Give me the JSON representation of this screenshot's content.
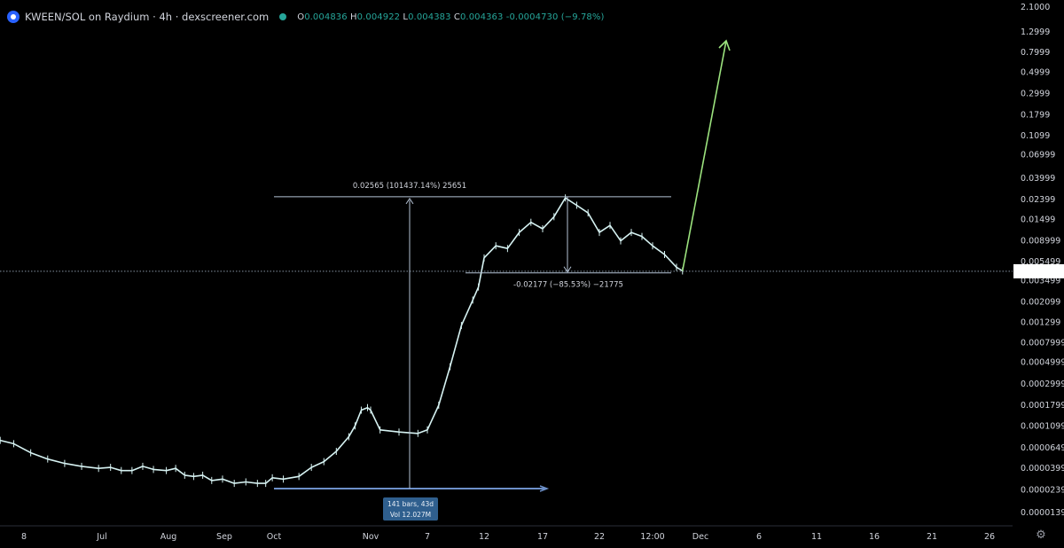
{
  "header": {
    "title": "KWEEN/SOL on Raydium · 4h · dexscreener.com",
    "ohlc": [
      {
        "k": "O",
        "v": "0.004836"
      },
      {
        "k": "H",
        "v": "0.004922"
      },
      {
        "k": "L",
        "v": "0.004383"
      },
      {
        "k": "C",
        "v": "0.004363"
      },
      {
        "k": "",
        "v": "-0.0004730 (−9.78%)"
      }
    ],
    "status_color": "#26a69a"
  },
  "chart_data": {
    "type": "line",
    "y_scale": "log",
    "grid": false,
    "y_ticks": [
      "2.1000",
      "1.2999",
      "0.7999",
      "0.4999",
      "0.2999",
      "0.1799",
      "0.1099",
      "0.06999",
      "0.03999",
      "0.02399",
      "0.01499",
      "0.008999",
      "0.005499",
      "0.003499",
      "0.002099",
      "0.001299",
      "0.0007999",
      "0.0004999",
      "0.0002999",
      "0.0001799",
      "0.0001099",
      "0.00006499",
      "0.00003999",
      "0.00002399",
      "0.00001399"
    ],
    "x_ticks": [
      "8",
      "Jul",
      "Aug",
      "Sep",
      "Oct",
      "Nov",
      "7",
      "12",
      "17",
      "22",
      "12:00",
      "Dec",
      "6",
      "11",
      "16",
      "21",
      "26"
    ],
    "series": [
      {
        "values": [
          [
            "2024-06-01",
            7.8e-05
          ],
          [
            "2024-06-05",
            7.2e-05
          ],
          [
            "2024-06-10",
            5.8e-05
          ],
          [
            "2024-06-15",
            5e-05
          ],
          [
            "2024-06-20",
            4.5e-05
          ],
          [
            "2024-06-25",
            4.2e-05
          ],
          [
            "2024-06-30",
            4e-05
          ],
          [
            "2024-07-05",
            4.1e-05
          ],
          [
            "2024-07-10",
            3.8e-05
          ],
          [
            "2024-07-15",
            3.8e-05
          ],
          [
            "2024-07-20",
            4.2e-05
          ],
          [
            "2024-07-25",
            3.9e-05
          ],
          [
            "2024-07-31",
            3.8e-05
          ],
          [
            "2024-08-05",
            4e-05
          ],
          [
            "2024-08-10",
            3.4e-05
          ],
          [
            "2024-08-15",
            3.3e-05
          ],
          [
            "2024-08-20",
            3.4e-05
          ],
          [
            "2024-08-25",
            3e-05
          ],
          [
            "2024-08-31",
            3.1e-05
          ],
          [
            "2024-09-07",
            2.8e-05
          ],
          [
            "2024-09-14",
            2.9e-05
          ],
          [
            "2024-09-21",
            2.8e-05
          ],
          [
            "2024-09-26",
            2.8e-05
          ],
          [
            "2024-09-30",
            3.2e-05
          ],
          [
            "2024-10-04",
            3.1e-05
          ],
          [
            "2024-10-09",
            3.3e-05
          ],
          [
            "2024-10-13",
            4.1e-05
          ],
          [
            "2024-10-17",
            4.7e-05
          ],
          [
            "2024-10-21",
            6e-05
          ],
          [
            "2024-10-25",
            8.5e-05
          ],
          [
            "2024-10-27",
            0.00011
          ],
          [
            "2024-10-29",
            0.00016
          ],
          [
            "2024-10-31",
            0.00017
          ],
          [
            "2024-11-01",
            0.00016
          ],
          [
            "2024-11-02",
            0.0001
          ],
          [
            "2024-11-04",
            9.5e-05
          ],
          [
            "2024-11-06",
            9.2e-05
          ],
          [
            "2024-11-07",
            0.0001
          ],
          [
            "2024-11-08",
            0.00018
          ],
          [
            "2024-11-09",
            0.00045
          ],
          [
            "2024-11-10",
            0.0012
          ],
          [
            "2024-11-11",
            0.0022
          ],
          [
            "2024-11-11 12:00",
            0.003
          ],
          [
            "2024-11-12",
            0.006
          ],
          [
            "2024-11-13",
            0.008
          ],
          [
            "2024-11-14",
            0.0075
          ],
          [
            "2024-11-15",
            0.011
          ],
          [
            "2024-11-16",
            0.014
          ],
          [
            "2024-11-17",
            0.012
          ],
          [
            "2024-11-18",
            0.016
          ],
          [
            "2024-11-19",
            0.025
          ],
          [
            "2024-11-20",
            0.021
          ],
          [
            "2024-11-21",
            0.0175
          ],
          [
            "2024-11-22",
            0.011
          ],
          [
            "2024-11-23",
            0.013
          ],
          [
            "2024-11-24",
            0.009
          ],
          [
            "2024-11-25",
            0.011
          ],
          [
            "2024-11-26",
            0.01
          ],
          [
            "2024-11-27",
            0.008
          ],
          [
            "2024-11-28",
            0.0065
          ],
          [
            "2024-11-29",
            0.0048
          ],
          [
            "2024-11-29 12:00",
            0.0044
          ]
        ]
      }
    ],
    "annotations": {
      "range_up_label": "0.02565 (101437.14%) 25651",
      "range_down_label": "-0.02177 (−85.53%) −21775",
      "range_box": [
        "141 bars, 43d",
        "Vol 12.027M"
      ],
      "price_line": 0.004363,
      "projection": [
        [
          "2024-11-29 12:00",
          0.0044
        ],
        [
          "2024-12-02",
          1.4
        ]
      ],
      "projection_color": "#9ce37e"
    }
  }
}
